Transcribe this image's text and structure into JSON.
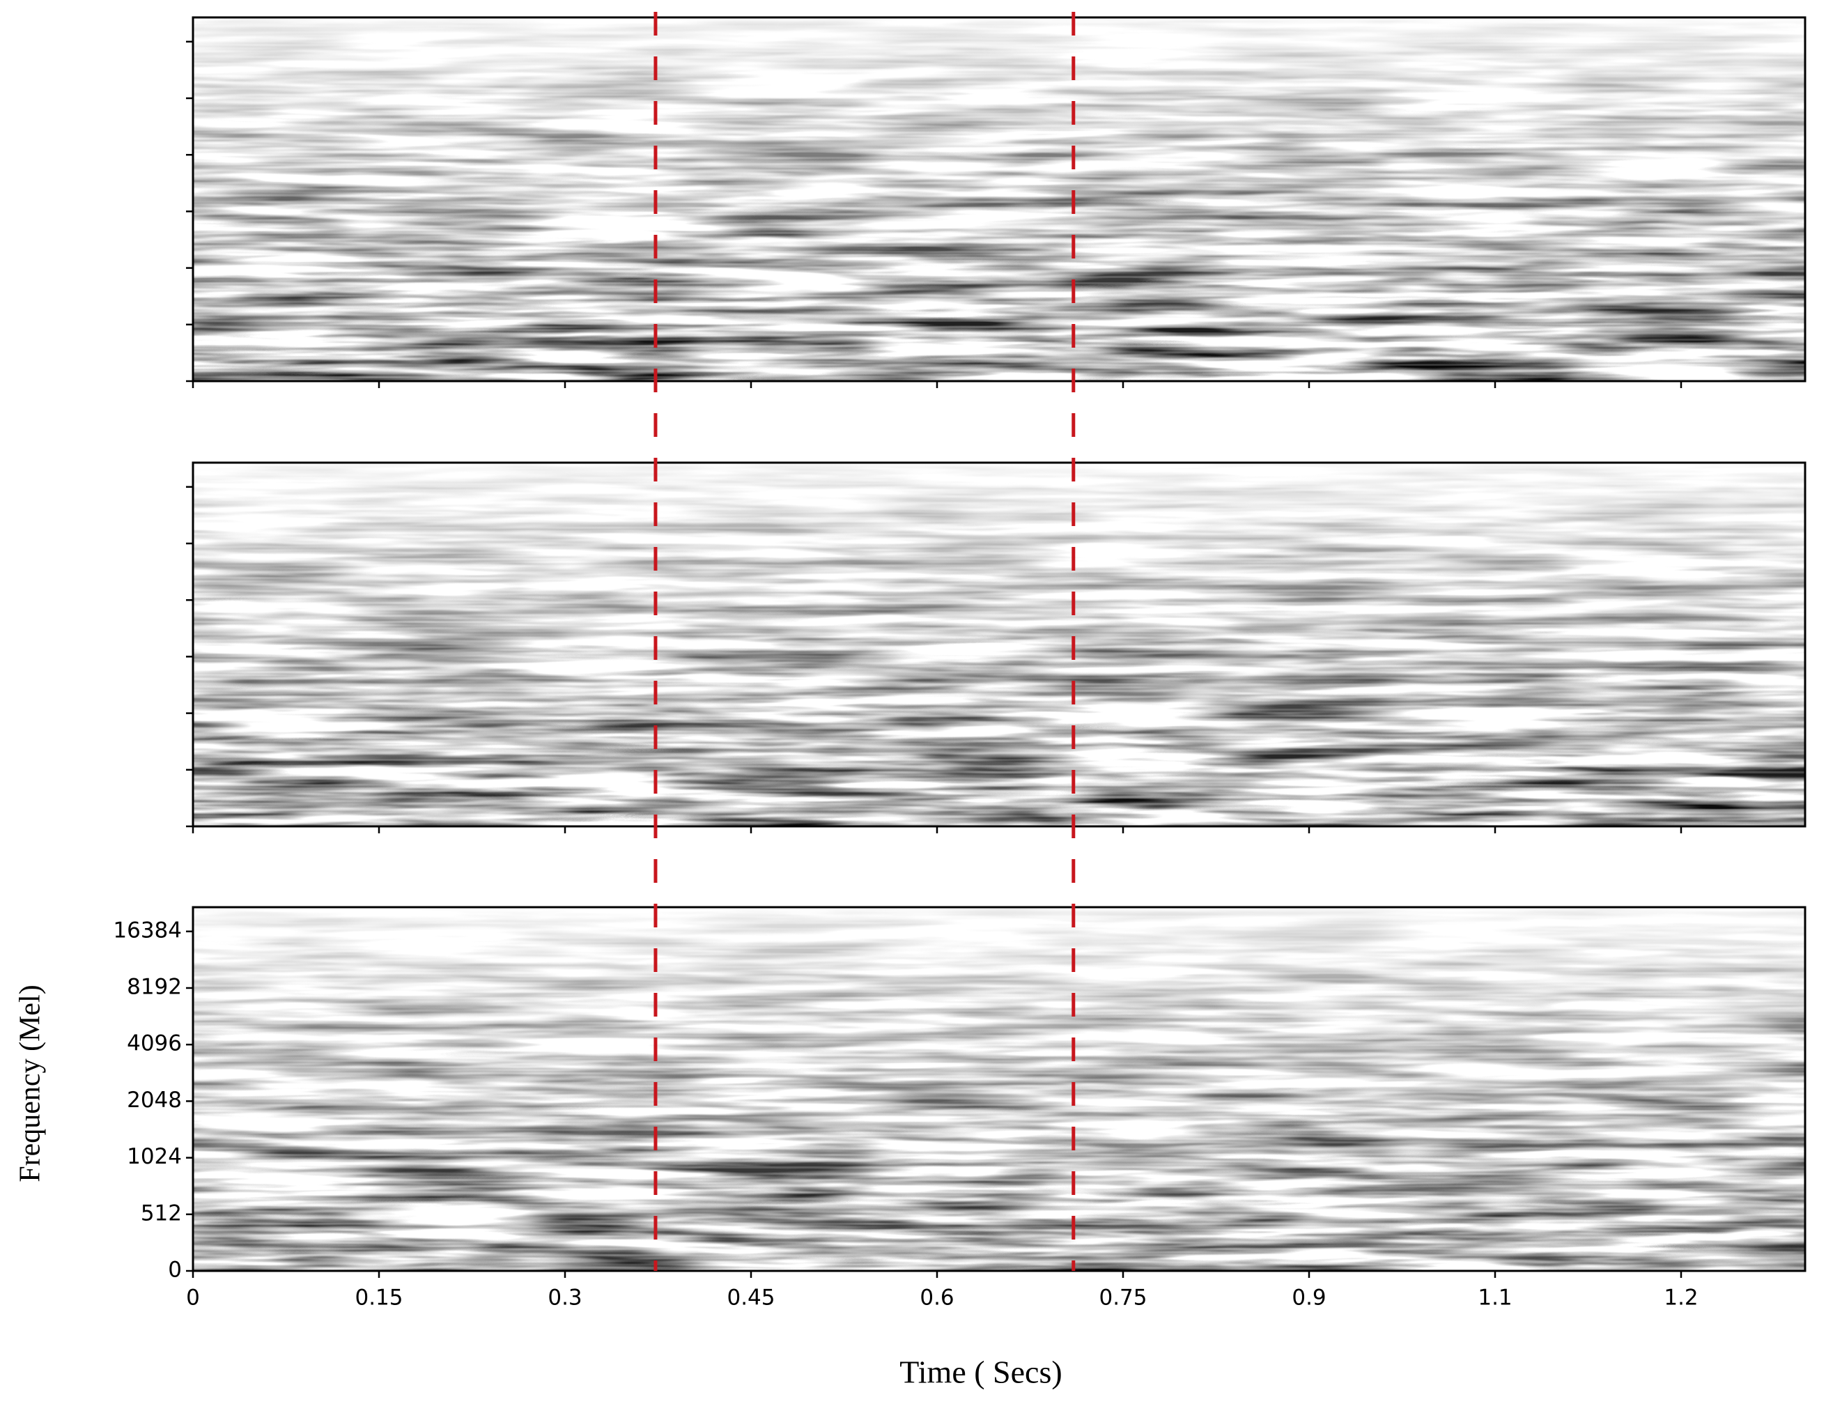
{
  "chart_data": {
    "type": "spectrogram",
    "x_label": "Time ( Secs)",
    "y_label": "Frequency (Mel)",
    "panels": 3,
    "xlim": [
      0,
      1.3
    ],
    "xticks": [
      0,
      0.15,
      0.3,
      0.45,
      0.6,
      0.75,
      0.9,
      {
        "value": 1.05,
        "label": "1.1"
      },
      1.2
    ],
    "ylim": [
      0,
      22050
    ],
    "yscale": "symlog",
    "linthresh": 512,
    "base": 2,
    "yticks": [
      0,
      512,
      1024,
      2048,
      4096,
      8192,
      16384
    ],
    "markers": [
      0.373,
      0.71
    ],
    "marker_color": "#c8161d"
  }
}
